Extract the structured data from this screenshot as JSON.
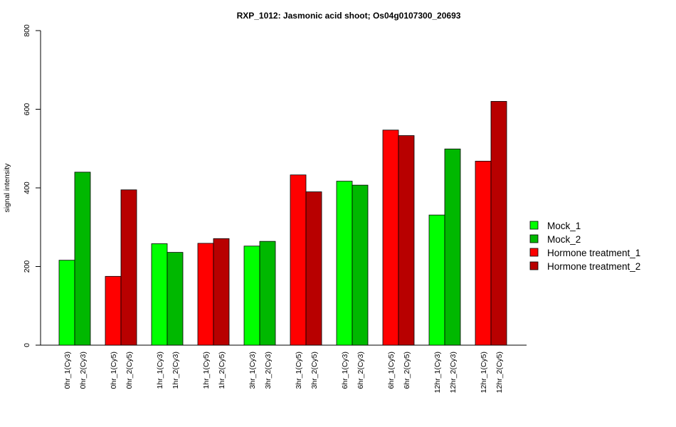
{
  "chart_data": {
    "type": "bar",
    "title": "RXP_1012: Jasmonic acid shoot; Os04g0107300_20693",
    "xlabel": "",
    "ylabel": "signal intensity",
    "ylim": [
      0,
      800
    ],
    "yticks": [
      "0",
      "200",
      "400",
      "600",
      "800"
    ],
    "grid": false,
    "legend_position": "right",
    "series": [
      {
        "name": "Mock_1",
        "color": "#00FF00"
      },
      {
        "name": "Mock_2",
        "color": "#00B800"
      },
      {
        "name": "Hormone treatment_1",
        "color": "#FF0000"
      },
      {
        "name": "Hormone treatment_2",
        "color": "#B80000"
      }
    ],
    "bars": [
      {
        "label": "0hr_1(Cy3)",
        "value": 216,
        "series": 0
      },
      {
        "label": "0hr_2(Cy3)",
        "value": 440,
        "series": 1
      },
      {
        "label": "0hr_1(Cy5)",
        "value": 175,
        "series": 2
      },
      {
        "label": "0hr_2(Cy5)",
        "value": 395,
        "series": 3
      },
      {
        "label": "1hr_1(Cy3)",
        "value": 258,
        "series": 0
      },
      {
        "label": "1hr_2(Cy3)",
        "value": 236,
        "series": 1
      },
      {
        "label": "1hr_1(Cy5)",
        "value": 259,
        "series": 2
      },
      {
        "label": "1hr_2(Cy5)",
        "value": 271,
        "series": 3
      },
      {
        "label": "3hr_1(Cy3)",
        "value": 252,
        "series": 0
      },
      {
        "label": "3hr_2(Cy3)",
        "value": 264,
        "series": 1
      },
      {
        "label": "3hr_1(Cy5)",
        "value": 433,
        "series": 2
      },
      {
        "label": "3hr_2(Cy5)",
        "value": 390,
        "series": 3
      },
      {
        "label": "6hr_1(Cy3)",
        "value": 417,
        "series": 0
      },
      {
        "label": "6hr_2(Cy3)",
        "value": 407,
        "series": 1
      },
      {
        "label": "6hr_1(Cy5)",
        "value": 547,
        "series": 2
      },
      {
        "label": "6hr_2(Cy5)",
        "value": 533,
        "series": 3
      },
      {
        "label": "12hr_1(Cy3)",
        "value": 331,
        "series": 0
      },
      {
        "label": "12hr_2(Cy3)",
        "value": 499,
        "series": 1
      },
      {
        "label": "12hr_1(Cy5)",
        "value": 468,
        "series": 2
      },
      {
        "label": "12hr_2(Cy5)",
        "value": 620,
        "series": 3
      }
    ]
  }
}
